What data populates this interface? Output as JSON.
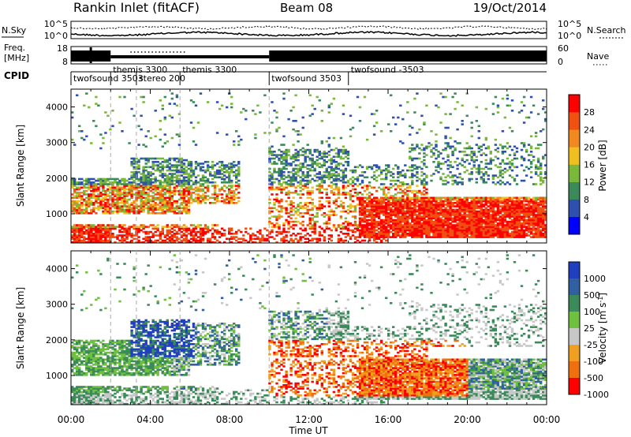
{
  "header": {
    "station": "Rankin Inlet (fitACF)",
    "beam": "Beam 08",
    "date": "19/Oct/2014"
  },
  "noise_panel": {
    "left_label": "N.Sky",
    "right_label": "N.Search",
    "left_ticks": [
      "10^5",
      "10^0"
    ],
    "right_ticks": [
      "10^5",
      "10^0"
    ]
  },
  "freq_panel": {
    "left_label_top": "Freq.",
    "left_label_bottom": "[MHz]",
    "left_ticks": [
      "18",
      "8"
    ],
    "right_label": "Nave",
    "right_ticks": [
      "60",
      "0"
    ]
  },
  "cpid_panel": {
    "label": "CPID",
    "segments": [
      {
        "name": "twofsound 3503",
        "start": 0.0
      },
      {
        "name": "themis 3300",
        "start": 2.0
      },
      {
        "name": "stereo 200",
        "start": 3.3
      },
      {
        "name": "themis 3300",
        "start": 5.5
      },
      {
        "name": "twofsound 3503",
        "start": 10.0
      },
      {
        "name": "twofsound -3503",
        "start": 14.0
      }
    ]
  },
  "chart_data": [
    {
      "type": "heatmap",
      "name": "power",
      "ylabel": "Slant Range [km]",
      "xlim": [
        0,
        24
      ],
      "ylim": [
        180,
        4500
      ],
      "y_ticks": [
        1000,
        2000,
        3000,
        4000
      ],
      "colorbar": {
        "label": "Power [dB]",
        "ticks": [
          "4",
          "8",
          "12",
          "16",
          "20",
          "24",
          "28"
        ],
        "colors": [
          "#0000ff",
          "#3050b0",
          "#3a8a5a",
          "#7ab83a",
          "#f0c020",
          "#f08a20",
          "#f05010",
          "#ff0000"
        ]
      }
    },
    {
      "type": "heatmap",
      "name": "velocity",
      "ylabel": "Slant Range [km]",
      "xlabel": "Time UT",
      "xlim": [
        0,
        24
      ],
      "x_ticks": [
        "00:00",
        "04:00",
        "08:00",
        "12:00",
        "16:00",
        "20:00",
        "00:00"
      ],
      "ylim": [
        180,
        4500
      ],
      "y_ticks": [
        1000,
        2000,
        3000,
        4000
      ],
      "colorbar": {
        "label": "Velocity [m s^-1]",
        "ticks": [
          "1000",
          "500",
          "100",
          "25",
          "-25",
          "-100",
          "-500",
          "-1000"
        ],
        "colors": [
          "#2040c0",
          "#3060a0",
          "#3a8a5a",
          "#70c040",
          "#c8c8c8",
          "#f0a020",
          "#f07010",
          "#ff0000"
        ]
      }
    }
  ]
}
